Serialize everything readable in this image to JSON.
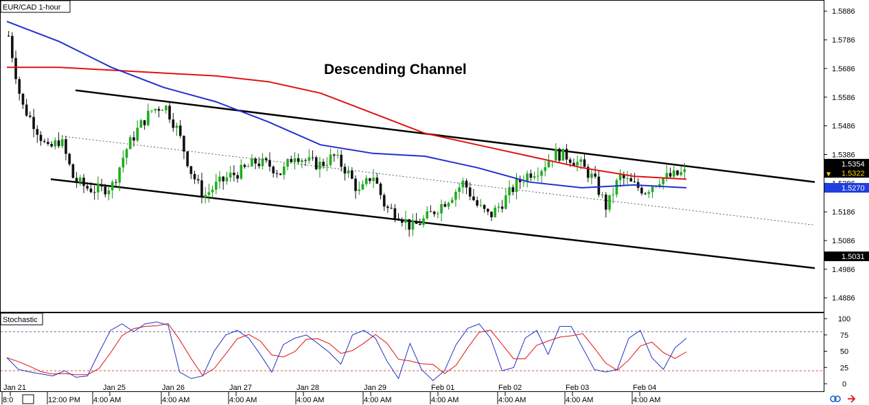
{
  "header": {
    "main_label": "EUR/CAD 1-hour",
    "stoch_label": "Stochastic"
  },
  "chart_data": {
    "type": "candlestick",
    "symbol": "EUR/CAD",
    "timeframe": "1-hour",
    "annotation": "Descending Channel",
    "ylim": [
      1.484,
      1.592
    ],
    "price_ticks": [
      "1.5886",
      "1.5786",
      "1.5686",
      "1.5586",
      "1.5486",
      "1.5386",
      "1.5286",
      "1.5186",
      "1.5086",
      "1.4986",
      "1.4886"
    ],
    "price_tags": [
      {
        "label": "1.5354",
        "value": 1.5354,
        "bg": "#000000",
        "fg": "#ffffff"
      },
      {
        "label": "1.5322",
        "value": 1.5322,
        "bg": "#000000",
        "fg": "#ffd400",
        "arrow": "▼"
      },
      {
        "label": "1.5270",
        "value": 1.527,
        "bg": "#1f3fe0",
        "fg": "#ffffff"
      },
      {
        "label": "1.5031",
        "value": 1.5031,
        "bg": "#000000",
        "fg": "#ffffff"
      }
    ],
    "time_labels": [
      "Jan 21",
      "Jan 25",
      "Jan 26",
      "Jan 27",
      "Jan 28",
      "Jan 29",
      "Feb 01",
      "Feb 02",
      "Feb 03",
      "Feb 04"
    ],
    "session_labels": [
      "8:0",
      "12:00 PM",
      "4:00 AM",
      "4:00 AM",
      "4:00 AM",
      "4:00 AM",
      "4:00 AM",
      "4:00 AM",
      "4:00 AM",
      "4:00 AM",
      "4:00 AM"
    ],
    "closes": [
      1.58,
      1.556,
      1.549,
      1.54,
      1.544,
      1.53,
      1.527,
      1.526,
      1.528,
      1.54,
      1.548,
      1.554,
      1.556,
      1.547,
      1.533,
      1.524,
      1.528,
      1.531,
      1.533,
      1.536,
      1.535,
      1.532,
      1.539,
      1.536,
      1.535,
      1.538,
      1.533,
      1.525,
      1.532,
      1.52,
      1.518,
      1.513,
      1.516,
      1.52,
      1.524,
      1.529,
      1.521,
      1.517,
      1.522,
      1.528,
      1.532,
      1.534,
      1.539,
      1.538,
      1.535,
      1.53,
      1.52,
      1.531,
      1.528,
      1.526,
      1.53,
      1.531,
      1.5322
    ],
    "series": [
      {
        "name": "",
        "color": "#e01010",
        "values": [
          1.569,
          1.569,
          1.568,
          1.567,
          1.566,
          1.564,
          1.56,
          1.553,
          1.546,
          1.542,
          1.538,
          1.534,
          1.531,
          1.53
        ]
      },
      {
        "name": "",
        "color": "#1f2fd0",
        "values": [
          1.585,
          1.578,
          1.569,
          1.562,
          1.557,
          1.55,
          1.542,
          1.539,
          1.538,
          1.534,
          1.529,
          1.527,
          1.528,
          1.527
        ]
      }
    ],
    "channel": {
      "upper_start": 1.561,
      "upper_end": 1.529,
      "lower_start": 1.53,
      "lower_end": 1.499,
      "mid_start": 1.545,
      "mid_end": 1.514
    },
    "stochastic": {
      "ylim": [
        0,
        100
      ],
      "ticks": [
        "100",
        "75",
        "50",
        "25",
        "0"
      ],
      "levels": [
        80,
        20
      ],
      "k": [
        40,
        22,
        18,
        15,
        12,
        20,
        10,
        12,
        48,
        82,
        92,
        80,
        92,
        95,
        90,
        18,
        8,
        12,
        50,
        75,
        82,
        70,
        45,
        18,
        60,
        70,
        75,
        62,
        48,
        30,
        75,
        82,
        70,
        35,
        8,
        62,
        22,
        5,
        20,
        60,
        85,
        92,
        70,
        20,
        25,
        70,
        82,
        45,
        88,
        88,
        55,
        22,
        18,
        22,
        70,
        82,
        40,
        22,
        55,
        70
      ]
    }
  }
}
